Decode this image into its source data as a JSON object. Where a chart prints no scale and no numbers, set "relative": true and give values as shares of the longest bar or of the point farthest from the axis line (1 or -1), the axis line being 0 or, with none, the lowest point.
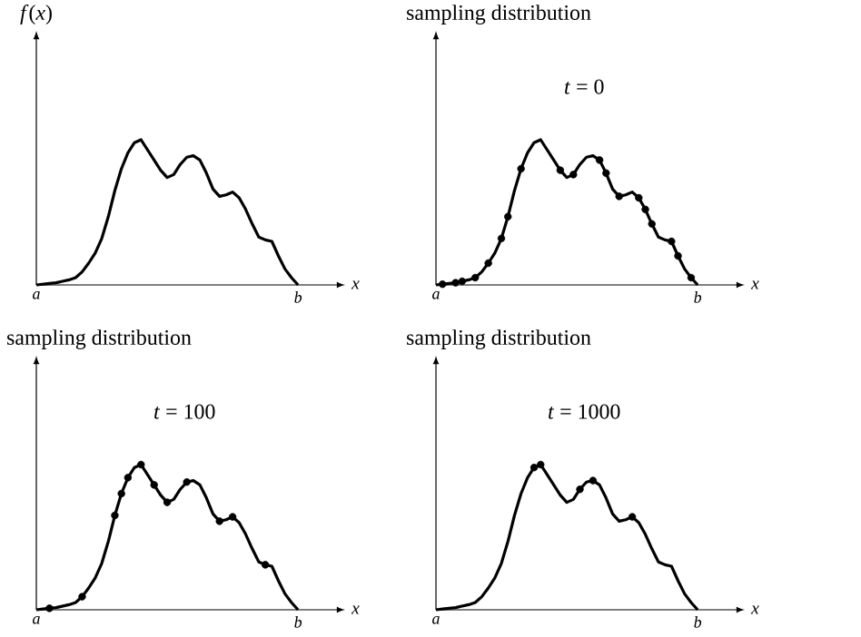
{
  "chart_data": [
    {
      "type": "line",
      "ylabel": "*f*(*x*)",
      "xlabel": "x",
      "relative": true,
      "categories": [
        "a",
        null,
        null,
        null,
        null,
        null,
        null,
        null,
        null,
        null,
        null,
        null,
        null,
        null,
        null,
        null,
        null,
        null,
        null,
        null,
        null,
        null,
        null,
        null,
        null,
        null,
        null,
        null,
        null,
        null,
        null,
        null,
        null,
        null,
        null,
        null,
        null,
        null,
        null,
        null,
        "b"
      ],
      "series": [
        {
          "type": "line",
          "color": "#000000",
          "values": [
            0,
            0.005,
            0.01,
            0.015,
            0.025,
            0.035,
            0.05,
            0.09,
            0.15,
            0.22,
            0.32,
            0.47,
            0.65,
            0.8,
            0.91,
            0.98,
            1.0,
            0.93,
            0.86,
            0.79,
            0.74,
            0.76,
            0.83,
            0.88,
            0.89,
            0.86,
            0.77,
            0.66,
            0.61,
            0.62,
            0.64,
            0.6,
            0.52,
            0.42,
            0.33,
            0.31,
            0.3,
            0.2,
            0.11,
            0.05,
            0
          ]
        }
      ]
    },
    {
      "type": "line",
      "title": "sampling distribution",
      "subtitle": "*t* = 0",
      "xlabel": "x",
      "relative": true,
      "categories": [
        "a",
        null,
        null,
        null,
        null,
        null,
        null,
        null,
        null,
        null,
        null,
        null,
        null,
        null,
        null,
        null,
        null,
        null,
        null,
        null,
        null,
        null,
        null,
        null,
        null,
        null,
        null,
        null,
        null,
        null,
        null,
        null,
        null,
        null,
        null,
        null,
        null,
        null,
        null,
        null,
        "b"
      ],
      "series": [
        {
          "type": "line",
          "color": "#000000",
          "values": [
            0,
            0.005,
            0.01,
            0.015,
            0.025,
            0.035,
            0.05,
            0.09,
            0.15,
            0.22,
            0.32,
            0.47,
            0.65,
            0.8,
            0.91,
            0.98,
            1.0,
            0.93,
            0.86,
            0.79,
            0.74,
            0.76,
            0.83,
            0.88,
            0.89,
            0.86,
            0.77,
            0.66,
            0.61,
            0.62,
            0.64,
            0.6,
            0.52,
            0.42,
            0.33,
            0.31,
            0.3,
            0.2,
            0.11,
            0.05,
            0
          ]
        },
        {
          "type": "scatter",
          "marker": "circle",
          "color": "#000000",
          "values": [
            null,
            0.005,
            null,
            0.015,
            0.025,
            null,
            0.05,
            null,
            0.15,
            null,
            0.32,
            0.47,
            null,
            0.8,
            null,
            null,
            null,
            null,
            null,
            0.79,
            null,
            0.76,
            null,
            null,
            null,
            0.86,
            0.77,
            null,
            0.61,
            null,
            null,
            0.6,
            0.52,
            0.42,
            null,
            null,
            0.3,
            0.2,
            null,
            0.05,
            null
          ]
        }
      ]
    },
    {
      "type": "line",
      "title": "sampling distribution",
      "subtitle": "*t* = 100",
      "xlabel": "x",
      "relative": true,
      "categories": [
        "a",
        null,
        null,
        null,
        null,
        null,
        null,
        null,
        null,
        null,
        null,
        null,
        null,
        null,
        null,
        null,
        null,
        null,
        null,
        null,
        null,
        null,
        null,
        null,
        null,
        null,
        null,
        null,
        null,
        null,
        null,
        null,
        null,
        null,
        null,
        null,
        null,
        null,
        null,
        null,
        "b"
      ],
      "series": [
        {
          "type": "line",
          "color": "#000000",
          "values": [
            0,
            0.005,
            0.01,
            0.015,
            0.025,
            0.035,
            0.05,
            0.09,
            0.15,
            0.22,
            0.32,
            0.47,
            0.65,
            0.8,
            0.91,
            0.98,
            1.0,
            0.93,
            0.86,
            0.79,
            0.74,
            0.76,
            0.83,
            0.88,
            0.89,
            0.86,
            0.77,
            0.66,
            0.61,
            0.62,
            0.64,
            0.6,
            0.52,
            0.42,
            0.33,
            0.31,
            0.3,
            0.2,
            0.11,
            0.05,
            0
          ]
        },
        {
          "type": "scatter",
          "marker": "circle",
          "color": "#000000",
          "values": [
            null,
            null,
            0.01,
            null,
            null,
            null,
            null,
            0.09,
            null,
            null,
            null,
            null,
            0.65,
            0.8,
            0.91,
            null,
            1.0,
            null,
            0.86,
            null,
            0.74,
            null,
            null,
            0.88,
            null,
            null,
            null,
            null,
            0.61,
            null,
            0.64,
            null,
            null,
            null,
            null,
            0.31,
            null,
            null,
            null,
            null,
            null
          ]
        }
      ]
    },
    {
      "type": "line",
      "title": "sampling distribution",
      "subtitle": "*t* = 1000",
      "xlabel": "x",
      "relative": true,
      "categories": [
        "a",
        null,
        null,
        null,
        null,
        null,
        null,
        null,
        null,
        null,
        null,
        null,
        null,
        null,
        null,
        null,
        null,
        null,
        null,
        null,
        null,
        null,
        null,
        null,
        null,
        null,
        null,
        null,
        null,
        null,
        null,
        null,
        null,
        null,
        null,
        null,
        null,
        null,
        null,
        null,
        "b"
      ],
      "series": [
        {
          "type": "line",
          "color": "#000000",
          "values": [
            0,
            0.005,
            0.01,
            0.015,
            0.025,
            0.035,
            0.05,
            0.09,
            0.15,
            0.22,
            0.32,
            0.47,
            0.65,
            0.8,
            0.91,
            0.98,
            1.0,
            0.93,
            0.86,
            0.79,
            0.74,
            0.76,
            0.83,
            0.88,
            0.89,
            0.86,
            0.77,
            0.66,
            0.61,
            0.62,
            0.64,
            0.6,
            0.52,
            0.42,
            0.33,
            0.31,
            0.3,
            0.2,
            0.11,
            0.05,
            0
          ]
        },
        {
          "type": "scatter",
          "marker": "circle",
          "color": "#000000",
          "values": [
            null,
            null,
            null,
            null,
            null,
            null,
            null,
            null,
            null,
            null,
            null,
            null,
            null,
            null,
            null,
            0.98,
            1.0,
            null,
            null,
            null,
            null,
            null,
            0.83,
            null,
            0.89,
            null,
            null,
            null,
            null,
            null,
            0.64,
            null,
            null,
            null,
            null,
            null,
            null,
            null,
            null,
            null,
            null
          ]
        }
      ]
    }
  ]
}
